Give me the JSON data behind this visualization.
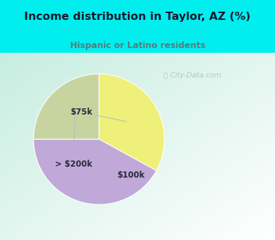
{
  "title": "Income distribution in Taylor, AZ (%)",
  "subtitle": "Hispanic or Latino residents",
  "title_color": "#1a1a2e",
  "subtitle_color": "#5a7a7a",
  "title_bg_color": "#00EEEE",
  "slice_labels": [
    "$75k",
    "$100k",
    "> $200k"
  ],
  "slice_values": [
    33,
    42,
    25
  ],
  "slice_colors": [
    "#eef07a",
    "#c0a8d8",
    "#c8d4a0"
  ],
  "start_angle": 90,
  "watermark": "City-Data.com",
  "label_fontsize": 8.5,
  "label_color": "#2a2a3a"
}
